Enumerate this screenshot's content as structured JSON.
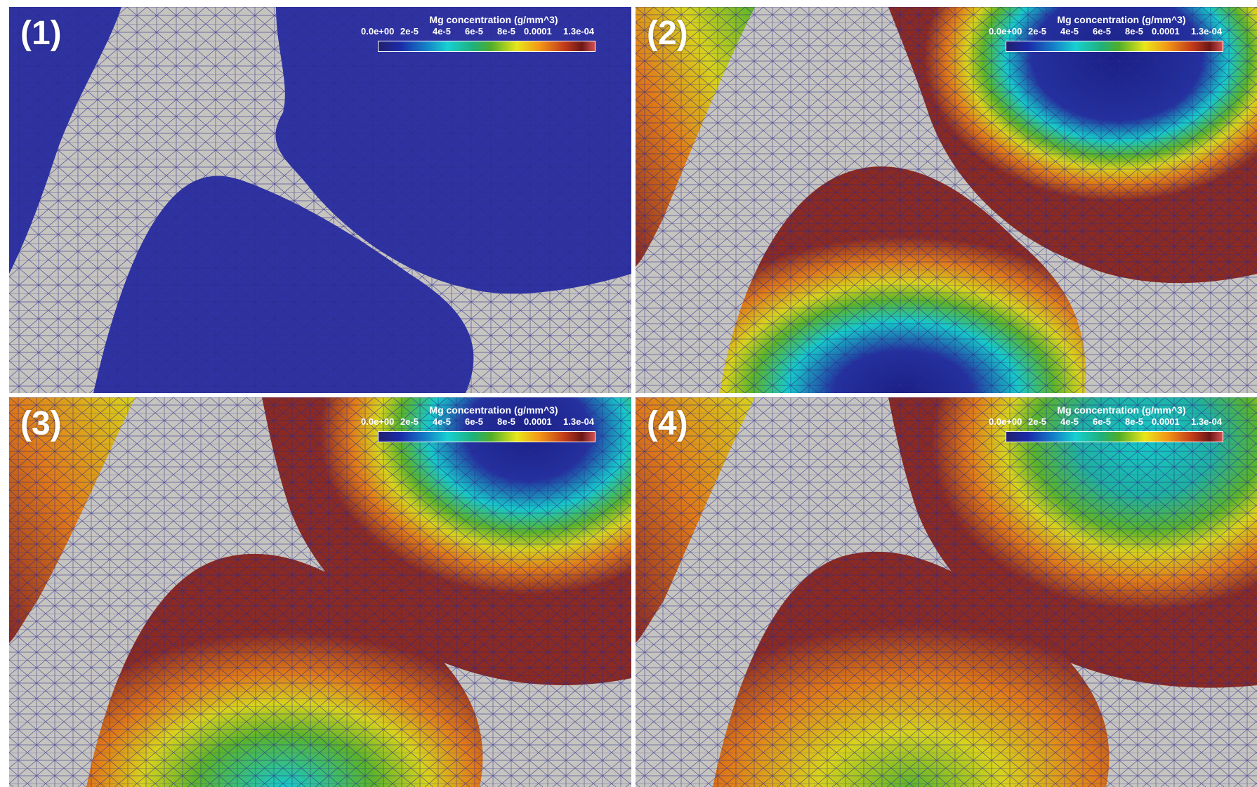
{
  "figure": {
    "panels": [
      {
        "label": "(1)",
        "legend": {
          "title": "Mg concentration (g/mm^3)",
          "ticks": [
            "0.0e+00",
            "2e-5",
            "4e-5",
            "6e-5",
            "8e-5",
            "0.0001",
            "1.3e-04"
          ]
        }
      },
      {
        "label": "(2)",
        "legend": {
          "title": "Mg concentration (g/mm^3)",
          "ticks": [
            "0.0e+00",
            "2e-5",
            "4e-5",
            "6e-5",
            "8e-5",
            "0.0001",
            "1.3e-04"
          ]
        }
      },
      {
        "label": "(3)",
        "legend": {
          "title": "Mg concentration (g/mm^3)",
          "ticks": [
            "0.0e+00",
            "2e-5",
            "4e-5",
            "6e-5",
            "8e-5",
            "0.0001",
            "1.3e-04"
          ]
        }
      },
      {
        "label": "(4)",
        "legend": {
          "title": "Mg concentration (g/mm^3)",
          "ticks": [
            "0.0e+00",
            "2e-5",
            "4e-5",
            "6e-5",
            "8e-5",
            "0.0001",
            "1.3e-04"
          ]
        }
      }
    ],
    "colors": {
      "background": "#c6c4bf",
      "mesh_lines": "#2a2a8c",
      "low": "#2b2f9b",
      "cyan": "#17c8c8",
      "green": "#5ab32a",
      "yellow": "#d8d21c",
      "orange": "#e07a18",
      "high": "#8a2a22"
    }
  }
}
